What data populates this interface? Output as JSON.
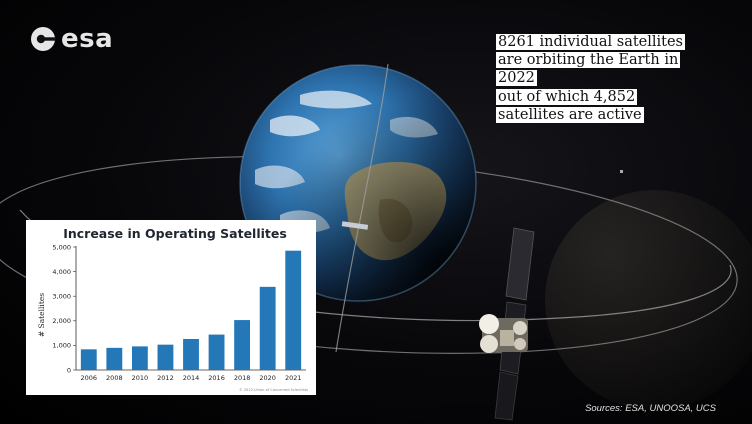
{
  "brand": {
    "name": "esa"
  },
  "slide": {
    "stat_1": "8261 individual satellites are orbiting the Earth in 2022",
    "stat_2": "out of which 4,852 satellites are active",
    "sources": "Sources: ESA, UNOOSA, UCS"
  },
  "chart_data": {
    "type": "bar",
    "title": "Increase in Operating Satellites",
    "xlabel": "",
    "ylabel": "# Satellites",
    "categories": [
      "2006",
      "2008",
      "2010",
      "2012",
      "2014",
      "2016",
      "2018",
      "2020",
      "2021"
    ],
    "values": [
      840,
      900,
      960,
      1030,
      1260,
      1440,
      2030,
      3380,
      4850
    ],
    "ylim": [
      0,
      5000
    ],
    "yticks": [
      "0",
      "1,000",
      "2,000",
      "3,000",
      "4,000",
      "5,000"
    ],
    "bar_color": "#2578b8",
    "grid": false,
    "credit": "© 2022 Union of Concerned Scientists"
  },
  "colors": {
    "ocean": "#1d5f95",
    "highlight_bg": "#ffffff",
    "text_dark": "#111111"
  },
  "icons": {
    "logo": "esa-logo-icon",
    "satellite": "satellite-icon",
    "planet": "earth-icon"
  }
}
